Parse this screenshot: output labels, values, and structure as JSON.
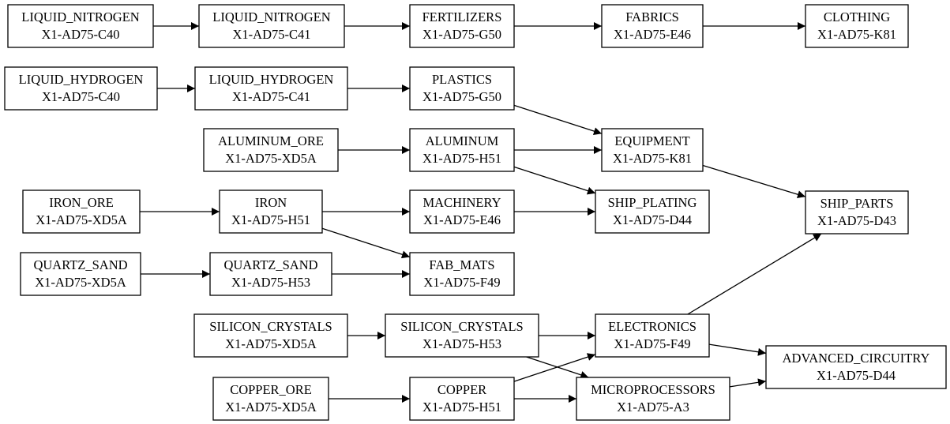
{
  "nodes": {
    "ln_c40": {
      "name": "LIQUID_NITROGEN",
      "code": "X1-AD75-C40"
    },
    "ln_c41": {
      "name": "LIQUID_NITROGEN",
      "code": "X1-AD75-C41"
    },
    "fert_g50": {
      "name": "FERTILIZERS",
      "code": "X1-AD75-G50"
    },
    "fabrics_e46": {
      "name": "FABRICS",
      "code": "X1-AD75-E46"
    },
    "clothing_k81": {
      "name": "CLOTHING",
      "code": "X1-AD75-K81"
    },
    "lh_c40": {
      "name": "LIQUID_HYDROGEN",
      "code": "X1-AD75-C40"
    },
    "lh_c41": {
      "name": "LIQUID_HYDROGEN",
      "code": "X1-AD75-C41"
    },
    "plastics_g50": {
      "name": "PLASTICS",
      "code": "X1-AD75-G50"
    },
    "alore_xd5a": {
      "name": "ALUMINUM_ORE",
      "code": "X1-AD75-XD5A"
    },
    "al_h51": {
      "name": "ALUMINUM",
      "code": "X1-AD75-H51"
    },
    "equip_k81": {
      "name": "EQUIPMENT",
      "code": "X1-AD75-K81"
    },
    "ironore_xd5a": {
      "name": "IRON_ORE",
      "code": "X1-AD75-XD5A"
    },
    "iron_h51": {
      "name": "IRON",
      "code": "X1-AD75-H51"
    },
    "mach_e46": {
      "name": "MACHINERY",
      "code": "X1-AD75-E46"
    },
    "plating_d44": {
      "name": "SHIP_PLATING",
      "code": "X1-AD75-D44"
    },
    "shipparts_d43": {
      "name": "SHIP_PARTS",
      "code": "X1-AD75-D43"
    },
    "qs_xd5a": {
      "name": "QUARTZ_SAND",
      "code": "X1-AD75-XD5A"
    },
    "qs_h53": {
      "name": "QUARTZ_SAND",
      "code": "X1-AD75-H53"
    },
    "fabmats_f49": {
      "name": "FAB_MATS",
      "code": "X1-AD75-F49"
    },
    "sc_xd5a": {
      "name": "SILICON_CRYSTALS",
      "code": "X1-AD75-XD5A"
    },
    "sc_h53": {
      "name": "SILICON_CRYSTALS",
      "code": "X1-AD75-H53"
    },
    "elec_f49": {
      "name": "ELECTRONICS",
      "code": "X1-AD75-F49"
    },
    "adv_d44": {
      "name": "ADVANCED_CIRCUITRY",
      "code": "X1-AD75-D44"
    },
    "cuore_xd5a": {
      "name": "COPPER_ORE",
      "code": "X1-AD75-XD5A"
    },
    "cu_h51": {
      "name": "COPPER",
      "code": "X1-AD75-H51"
    },
    "micro_a3": {
      "name": "MICROPROCESSORS",
      "code": "X1-AD75-A3"
    }
  },
  "edges": [
    [
      "ln_c40",
      "ln_c41"
    ],
    [
      "ln_c41",
      "fert_g50"
    ],
    [
      "fert_g50",
      "fabrics_e46"
    ],
    [
      "fabrics_e46",
      "clothing_k81"
    ],
    [
      "lh_c40",
      "lh_c41"
    ],
    [
      "lh_c41",
      "plastics_g50"
    ],
    [
      "plastics_g50",
      "equip_k81"
    ],
    [
      "alore_xd5a",
      "al_h51"
    ],
    [
      "al_h51",
      "equip_k81"
    ],
    [
      "al_h51",
      "plating_d44"
    ],
    [
      "equip_k81",
      "shipparts_d43"
    ],
    [
      "ironore_xd5a",
      "iron_h51"
    ],
    [
      "iron_h51",
      "mach_e46"
    ],
    [
      "iron_h51",
      "fabmats_f49"
    ],
    [
      "mach_e46",
      "plating_d44"
    ],
    [
      "qs_xd5a",
      "qs_h53"
    ],
    [
      "qs_h53",
      "fabmats_f49"
    ],
    [
      "sc_xd5a",
      "sc_h53"
    ],
    [
      "sc_h53",
      "elec_f49"
    ],
    [
      "sc_h53",
      "micro_a3"
    ],
    [
      "cuore_xd5a",
      "cu_h51"
    ],
    [
      "cu_h51",
      "elec_f49"
    ],
    [
      "cu_h51",
      "micro_a3"
    ],
    [
      "elec_f49",
      "shipparts_d43"
    ],
    [
      "elec_f49",
      "adv_d44"
    ],
    [
      "micro_a3",
      "adv_d44"
    ]
  ]
}
